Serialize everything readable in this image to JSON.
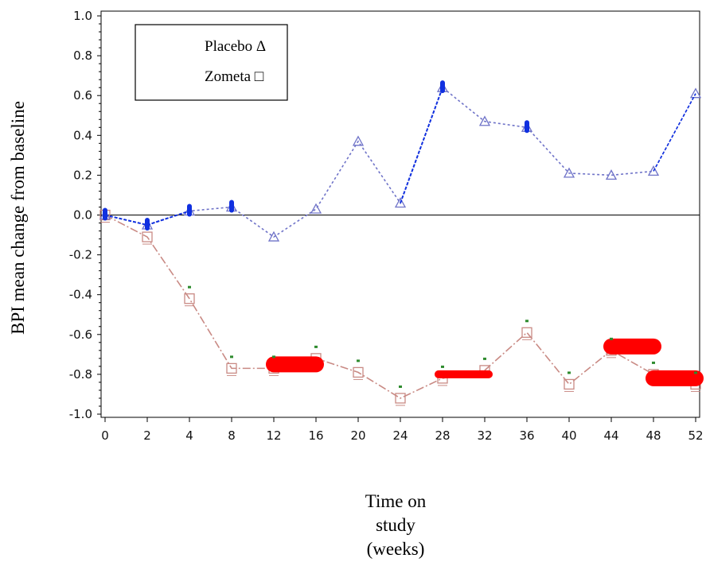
{
  "chart_data": {
    "type": "line",
    "title": "",
    "ylabel": "BPI mean change from baseline",
    "xlabel_lines": [
      "Time on",
      "study",
      "(weeks)"
    ],
    "x_tick_labels": [
      "0",
      "2",
      "4",
      "8",
      "12",
      "16",
      "20",
      "24",
      "28",
      "32",
      "36",
      "40",
      "44",
      "48",
      "52"
    ],
    "y_ticks": [
      1.0,
      0.8,
      0.6,
      0.4,
      0.2,
      0.0,
      -0.2,
      -0.4,
      -0.6,
      -0.8,
      -1.0
    ],
    "y_tick_labels": [
      "1.0",
      "0.8",
      "0.6",
      "0.4",
      "0.2",
      "0.0",
      "-0.2",
      "-0.4",
      "-0.6",
      "-0.8",
      "-1.0"
    ],
    "ylim": [
      -1.0,
      1.0
    ],
    "reference_line_y": 0.0,
    "legend": {
      "placement": "top-left",
      "entries": [
        {
          "label": "Placebo Δ",
          "series": "placebo"
        },
        {
          "label": "Zometa □",
          "series": "zometa"
        }
      ]
    },
    "series": [
      {
        "key": "placebo",
        "marker": "triangle",
        "color": "#6f73c8",
        "x": [
          "0",
          "2",
          "4",
          "8",
          "12",
          "16",
          "20",
          "24",
          "28",
          "32",
          "36",
          "40",
          "44",
          "48",
          "52"
        ],
        "values": [
          0.0,
          -0.05,
          0.02,
          0.04,
          -0.11,
          0.03,
          0.37,
          0.06,
          0.64,
          0.47,
          0.44,
          0.21,
          0.2,
          0.22,
          0.61
        ]
      },
      {
        "key": "zometa",
        "marker": "square",
        "color": "#c98a84",
        "x": [
          "0",
          "2",
          "4",
          "8",
          "12",
          "16",
          "20",
          "24",
          "28",
          "32",
          "36",
          "40",
          "44",
          "48",
          "52"
        ],
        "values": [
          0.0,
          -0.11,
          -0.42,
          -0.77,
          -0.77,
          -0.72,
          -0.79,
          -0.92,
          -0.82,
          -0.78,
          -0.59,
          -0.85,
          -0.68,
          -0.8,
          -0.85
        ]
      }
    ],
    "colors": {
      "highlight_red": "#ff0000",
      "highlight_blue": "#1030e0",
      "significance_green": "#2e8b2e"
    }
  }
}
